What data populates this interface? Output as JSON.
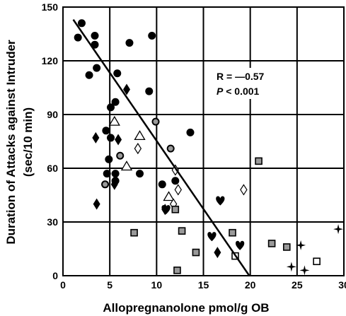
{
  "chart_data": {
    "type": "scatter",
    "title": "",
    "xlabel": "Allopregnanolone pmol/g OB",
    "ylabel_line1": "Duration of Attacks against Intruder",
    "ylabel_line2": "(sec/10 min)",
    "xlim": [
      0,
      30
    ],
    "ylim": [
      0,
      150
    ],
    "xticks": [
      0,
      5,
      10,
      15,
      20,
      25,
      30
    ],
    "yticks": [
      0,
      30,
      60,
      90,
      120,
      150
    ],
    "grid": true,
    "annotations": {
      "r_text": "R = —0.57",
      "p_italic": "P",
      "p_rest": " < 0.001"
    },
    "regression_line": {
      "x": [
        1.1,
        19.9
      ],
      "y": [
        143,
        0
      ]
    },
    "series": [
      {
        "marker": "filled-circle",
        "color": "#000000",
        "points": [
          [
            1.6,
            133
          ],
          [
            2.0,
            141
          ],
          [
            2.8,
            112
          ],
          [
            3.4,
            134
          ],
          [
            3.4,
            129
          ],
          [
            3.6,
            116
          ],
          [
            4.6,
            81
          ],
          [
            4.7,
            57
          ],
          [
            4.9,
            65
          ],
          [
            5.1,
            94
          ],
          [
            5.6,
            97
          ],
          [
            5.8,
            113
          ],
          [
            7.1,
            130
          ],
          [
            8.2,
            57
          ],
          [
            9.2,
            103
          ],
          [
            9.5,
            134
          ],
          [
            10.6,
            51
          ],
          [
            13.6,
            80
          ],
          [
            5.1,
            77
          ],
          [
            5.6,
            53
          ],
          [
            5.6,
            57
          ],
          [
            12.0,
            53
          ]
        ]
      },
      {
        "marker": "gray-circle",
        "color": "#999999",
        "points": [
          [
            4.5,
            51
          ],
          [
            6.1,
            67
          ],
          [
            9.9,
            86
          ],
          [
            11.5,
            71
          ]
        ]
      },
      {
        "marker": "filled-diamond",
        "color": "#000000",
        "points": [
          [
            3.5,
            77
          ],
          [
            5.9,
            76
          ],
          [
            6.8,
            104
          ],
          [
            3.6,
            40
          ],
          [
            5.5,
            51
          ],
          [
            16.5,
            13
          ],
          [
            10.9,
            37
          ]
        ]
      },
      {
        "marker": "heart",
        "color": "#000000",
        "points": [
          [
            11.0,
            37
          ],
          [
            15.9,
            22
          ],
          [
            16.8,
            42
          ],
          [
            18.9,
            17
          ]
        ]
      },
      {
        "marker": "open-triangle",
        "color": "#000000",
        "points": [
          [
            5.5,
            86
          ],
          [
            8.2,
            78
          ],
          [
            6.8,
            61
          ],
          [
            11.3,
            44
          ]
        ]
      },
      {
        "marker": "open-diamond",
        "color": "#000000",
        "points": [
          [
            8.0,
            71
          ],
          [
            12.0,
            59
          ],
          [
            12.3,
            48
          ],
          [
            11.8,
            40
          ],
          [
            19.3,
            48
          ]
        ]
      },
      {
        "marker": "gray-square",
        "color": "#999999",
        "points": [
          [
            7.6,
            24
          ],
          [
            12.0,
            37
          ],
          [
            12.7,
            25
          ],
          [
            14.2,
            13
          ],
          [
            12.2,
            3
          ],
          [
            18.1,
            24
          ],
          [
            20.9,
            64
          ],
          [
            22.3,
            18
          ],
          [
            23.9,
            16
          ]
        ]
      },
      {
        "marker": "open-square",
        "color": "#000000",
        "points": [
          [
            18.4,
            11
          ],
          [
            27.1,
            8
          ]
        ]
      },
      {
        "marker": "star",
        "color": "#000000",
        "points": [
          [
            24.4,
            5
          ],
          [
            25.4,
            17
          ],
          [
            25.8,
            3
          ],
          [
            29.4,
            26
          ]
        ]
      }
    ]
  }
}
